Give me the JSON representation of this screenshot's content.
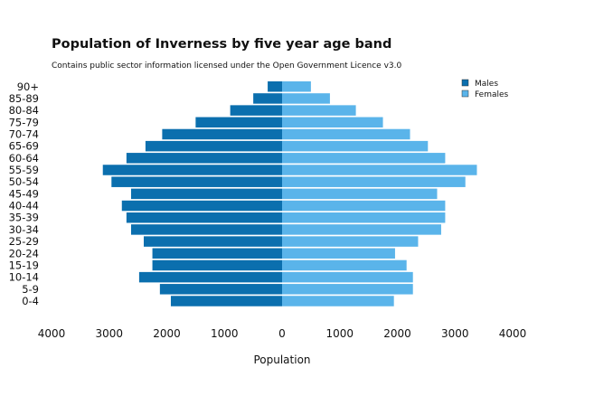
{
  "title": "Population of Inverness by five year age band",
  "subtitle": "Contains public sector information licensed under the Open Government Licence v3.0",
  "colors": {
    "males": "#0b6fae",
    "females": "#5ab4ea"
  },
  "chart_data": {
    "type": "bar",
    "orientation": "horizontal",
    "diverging": true,
    "title": "Population of Inverness by five year age band",
    "xlabel": "Population",
    "ylabel": "",
    "xlim": [
      -4000,
      4000
    ],
    "x_ticks": [
      "4000",
      "3000",
      "2000",
      "1000",
      "0",
      "1000",
      "2000",
      "3000",
      "4000"
    ],
    "x_tick_values": [
      -4000,
      -3000,
      -2000,
      -1000,
      0,
      1000,
      2000,
      3000,
      4000
    ],
    "legend_position": "top-right",
    "grid": false,
    "categories": [
      "90+",
      "85-89",
      "80-84",
      "75-79",
      "70-74",
      "65-69",
      "60-64",
      "55-59",
      "50-54",
      "45-49",
      "40-44",
      "35-39",
      "30-34",
      "25-29",
      "20-24",
      "15-19",
      "10-14",
      "5-9",
      "0-4"
    ],
    "series": [
      {
        "name": "Males",
        "values": [
          250,
          500,
          900,
          1500,
          2080,
          2370,
          2700,
          3110,
          2960,
          2620,
          2780,
          2700,
          2620,
          2400,
          2250,
          2250,
          2480,
          2120,
          1930
        ]
      },
      {
        "name": "Females",
        "values": [
          500,
          830,
          1280,
          1750,
          2220,
          2530,
          2830,
          3380,
          3180,
          2690,
          2830,
          2830,
          2760,
          2360,
          1960,
          2160,
          2270,
          2270,
          1940
        ]
      }
    ]
  }
}
